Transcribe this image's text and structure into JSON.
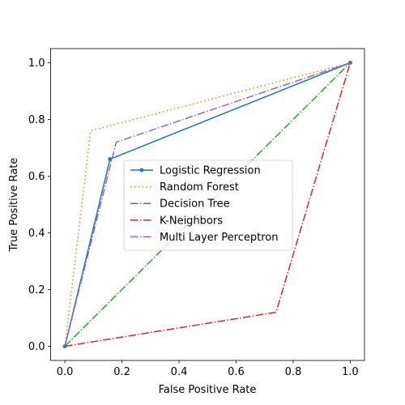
{
  "chart_data": {
    "type": "line",
    "title": "",
    "xlabel": "False Positive Rate",
    "ylabel": "True Positive Rate",
    "xlim": [
      -0.05,
      1.05
    ],
    "ylim": [
      -0.05,
      1.05
    ],
    "xticks": [
      "0.0",
      "0.2",
      "0.4",
      "0.6",
      "0.8",
      "1.0"
    ],
    "yticks": [
      "0.0",
      "0.2",
      "0.4",
      "0.6",
      "0.8",
      "1.0"
    ],
    "grid": false,
    "legend_position": "center",
    "series": [
      {
        "name": "Logistic Regression",
        "color": "#1f77b4",
        "dash": "solid",
        "marker": "point",
        "x": [
          0.0,
          0.158,
          1.0
        ],
        "y": [
          0.0,
          0.66,
          1.0
        ]
      },
      {
        "name": "Random Forest",
        "color": "#ff7f0e",
        "dash": "dotted",
        "marker": "none",
        "x": [
          0.0,
          0.09,
          1.0
        ],
        "y": [
          0.0,
          0.76,
          1.0
        ]
      },
      {
        "name": "Decision Tree",
        "color": "#2ca02c",
        "dash": "dashdot",
        "marker": "none",
        "x": [
          0.0,
          1.0
        ],
        "y": [
          0.0,
          1.0
        ]
      },
      {
        "name": "K-Neighbors",
        "color": "#d62728",
        "dash": "dashdot",
        "marker": "none",
        "x": [
          0.0,
          0.74,
          1.0
        ],
        "y": [
          0.0,
          0.12,
          1.0
        ]
      },
      {
        "name": "Multi Layer Perceptron",
        "color": "#9467bd",
        "dash": "dashdot",
        "marker": "none",
        "x": [
          0.0,
          0.18,
          1.0
        ],
        "y": [
          0.0,
          0.72,
          1.0
        ]
      }
    ]
  }
}
